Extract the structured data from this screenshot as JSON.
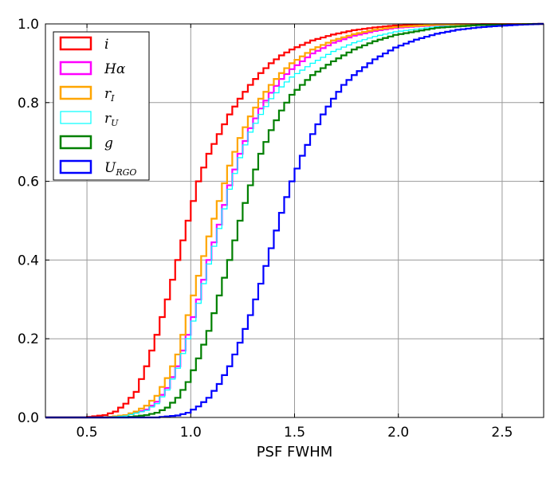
{
  "chart_data": {
    "type": "line",
    "subtype": "cumulative step histogram",
    "title": "",
    "xlabel": "PSF FWHM",
    "ylabel": "",
    "xlim": [
      0.3,
      2.7
    ],
    "ylim": [
      0.0,
      1.0
    ],
    "xticks": [
      "0.5",
      "1.0",
      "1.5",
      "2.0",
      "2.5"
    ],
    "yticks": [
      "0.0",
      "0.2",
      "0.4",
      "0.6",
      "0.8",
      "1.0"
    ],
    "grid": true,
    "legend_position": "top-left",
    "series": [
      {
        "name": "i",
        "name_main": "i",
        "name_sub": "",
        "color": "#ff0000",
        "points": [
          [
            0.3,
            0.0
          ],
          [
            0.5,
            0.0
          ],
          [
            0.6,
            0.006
          ],
          [
            0.65,
            0.015
          ],
          [
            0.7,
            0.035
          ],
          [
            0.75,
            0.065
          ],
          [
            0.8,
            0.13
          ],
          [
            0.85,
            0.21
          ],
          [
            0.9,
            0.3
          ],
          [
            0.95,
            0.4
          ],
          [
            1.0,
            0.5
          ],
          [
            1.05,
            0.6
          ],
          [
            1.1,
            0.67
          ],
          [
            1.15,
            0.72
          ],
          [
            1.2,
            0.77
          ],
          [
            1.25,
            0.81
          ],
          [
            1.3,
            0.845
          ],
          [
            1.35,
            0.875
          ],
          [
            1.4,
            0.9
          ],
          [
            1.45,
            0.92
          ],
          [
            1.5,
            0.935
          ],
          [
            1.6,
            0.958
          ],
          [
            1.7,
            0.973
          ],
          [
            1.8,
            0.984
          ],
          [
            1.9,
            0.991
          ],
          [
            2.0,
            0.996
          ],
          [
            2.2,
            0.999
          ],
          [
            2.7,
            1.0
          ]
        ]
      },
      {
        "name": "Hα",
        "name_main": "Hα",
        "name_sub": "",
        "color": "#ff00ff",
        "points": [
          [
            0.3,
            0.0
          ],
          [
            0.6,
            0.0
          ],
          [
            0.7,
            0.005
          ],
          [
            0.8,
            0.02
          ],
          [
            0.85,
            0.04
          ],
          [
            0.9,
            0.075
          ],
          [
            0.95,
            0.13
          ],
          [
            1.0,
            0.21
          ],
          [
            1.05,
            0.3
          ],
          [
            1.1,
            0.4
          ],
          [
            1.15,
            0.49
          ],
          [
            1.2,
            0.59
          ],
          [
            1.25,
            0.67
          ],
          [
            1.3,
            0.735
          ],
          [
            1.35,
            0.785
          ],
          [
            1.4,
            0.825
          ],
          [
            1.45,
            0.86
          ],
          [
            1.5,
            0.885
          ],
          [
            1.6,
            0.925
          ],
          [
            1.7,
            0.952
          ],
          [
            1.8,
            0.97
          ],
          [
            1.9,
            0.982
          ],
          [
            2.0,
            0.99
          ],
          [
            2.2,
            0.997
          ],
          [
            2.5,
            0.999
          ],
          [
            2.7,
            1.0
          ]
        ]
      },
      {
        "name": "rI",
        "name_main": "r",
        "name_sub": "I",
        "color": "#ffa500",
        "points": [
          [
            0.3,
            0.0
          ],
          [
            0.6,
            0.0
          ],
          [
            0.7,
            0.006
          ],
          [
            0.75,
            0.015
          ],
          [
            0.8,
            0.03
          ],
          [
            0.85,
            0.055
          ],
          [
            0.9,
            0.1
          ],
          [
            0.95,
            0.16
          ],
          [
            1.0,
            0.26
          ],
          [
            1.05,
            0.36
          ],
          [
            1.1,
            0.46
          ],
          [
            1.15,
            0.55
          ],
          [
            1.2,
            0.64
          ],
          [
            1.25,
            0.71
          ],
          [
            1.3,
            0.765
          ],
          [
            1.35,
            0.81
          ],
          [
            1.4,
            0.845
          ],
          [
            1.45,
            0.875
          ],
          [
            1.5,
            0.9
          ],
          [
            1.6,
            0.935
          ],
          [
            1.7,
            0.958
          ],
          [
            1.8,
            0.974
          ],
          [
            1.9,
            0.985
          ],
          [
            2.0,
            0.992
          ],
          [
            2.2,
            0.998
          ],
          [
            2.7,
            1.0
          ]
        ]
      },
      {
        "name": "rU",
        "name_main": "r",
        "name_sub": "U",
        "color": "#00ffff",
        "points": [
          [
            0.3,
            0.0
          ],
          [
            0.6,
            0.0
          ],
          [
            0.7,
            0.004
          ],
          [
            0.8,
            0.018
          ],
          [
            0.85,
            0.035
          ],
          [
            0.9,
            0.07
          ],
          [
            0.95,
            0.125
          ],
          [
            1.0,
            0.2
          ],
          [
            1.05,
            0.29
          ],
          [
            1.1,
            0.39
          ],
          [
            1.15,
            0.48
          ],
          [
            1.2,
            0.58
          ],
          [
            1.25,
            0.66
          ],
          [
            1.3,
            0.725
          ],
          [
            1.35,
            0.77
          ],
          [
            1.4,
            0.81
          ],
          [
            1.45,
            0.84
          ],
          [
            1.5,
            0.865
          ],
          [
            1.6,
            0.9
          ],
          [
            1.7,
            0.93
          ],
          [
            1.8,
            0.952
          ],
          [
            1.9,
            0.968
          ],
          [
            2.0,
            0.98
          ],
          [
            2.2,
            0.993
          ],
          [
            2.5,
            0.999
          ],
          [
            2.7,
            1.0
          ]
        ]
      },
      {
        "name": "g",
        "name_main": "g",
        "name_sub": "",
        "color": "#008000",
        "points": [
          [
            0.3,
            0.0
          ],
          [
            0.7,
            0.0
          ],
          [
            0.8,
            0.006
          ],
          [
            0.85,
            0.012
          ],
          [
            0.9,
            0.025
          ],
          [
            0.95,
            0.05
          ],
          [
            1.0,
            0.09
          ],
          [
            1.05,
            0.15
          ],
          [
            1.1,
            0.22
          ],
          [
            1.15,
            0.31
          ],
          [
            1.2,
            0.4
          ],
          [
            1.25,
            0.5
          ],
          [
            1.3,
            0.59
          ],
          [
            1.35,
            0.67
          ],
          [
            1.4,
            0.73
          ],
          [
            1.45,
            0.78
          ],
          [
            1.5,
            0.82
          ],
          [
            1.6,
            0.87
          ],
          [
            1.7,
            0.905
          ],
          [
            1.8,
            0.935
          ],
          [
            1.9,
            0.956
          ],
          [
            2.0,
            0.972
          ],
          [
            2.2,
            0.99
          ],
          [
            2.4,
            0.997
          ],
          [
            2.7,
            1.0
          ]
        ]
      },
      {
        "name": "URGO",
        "name_main": "U",
        "name_sub": "RGO",
        "color": "#0000ff",
        "points": [
          [
            0.3,
            0.0
          ],
          [
            0.85,
            0.0
          ],
          [
            0.95,
            0.005
          ],
          [
            1.0,
            0.012
          ],
          [
            1.05,
            0.028
          ],
          [
            1.1,
            0.05
          ],
          [
            1.15,
            0.085
          ],
          [
            1.2,
            0.13
          ],
          [
            1.25,
            0.19
          ],
          [
            1.3,
            0.26
          ],
          [
            1.35,
            0.34
          ],
          [
            1.4,
            0.43
          ],
          [
            1.45,
            0.52
          ],
          [
            1.5,
            0.6
          ],
          [
            1.55,
            0.665
          ],
          [
            1.6,
            0.72
          ],
          [
            1.65,
            0.77
          ],
          [
            1.7,
            0.81
          ],
          [
            1.75,
            0.845
          ],
          [
            1.8,
            0.87
          ],
          [
            1.9,
            0.91
          ],
          [
            2.0,
            0.94
          ],
          [
            2.1,
            0.96
          ],
          [
            2.2,
            0.975
          ],
          [
            2.3,
            0.985
          ],
          [
            2.4,
            0.991
          ],
          [
            2.5,
            0.995
          ],
          [
            2.6,
            0.998
          ],
          [
            2.7,
            1.0
          ]
        ]
      }
    ]
  }
}
